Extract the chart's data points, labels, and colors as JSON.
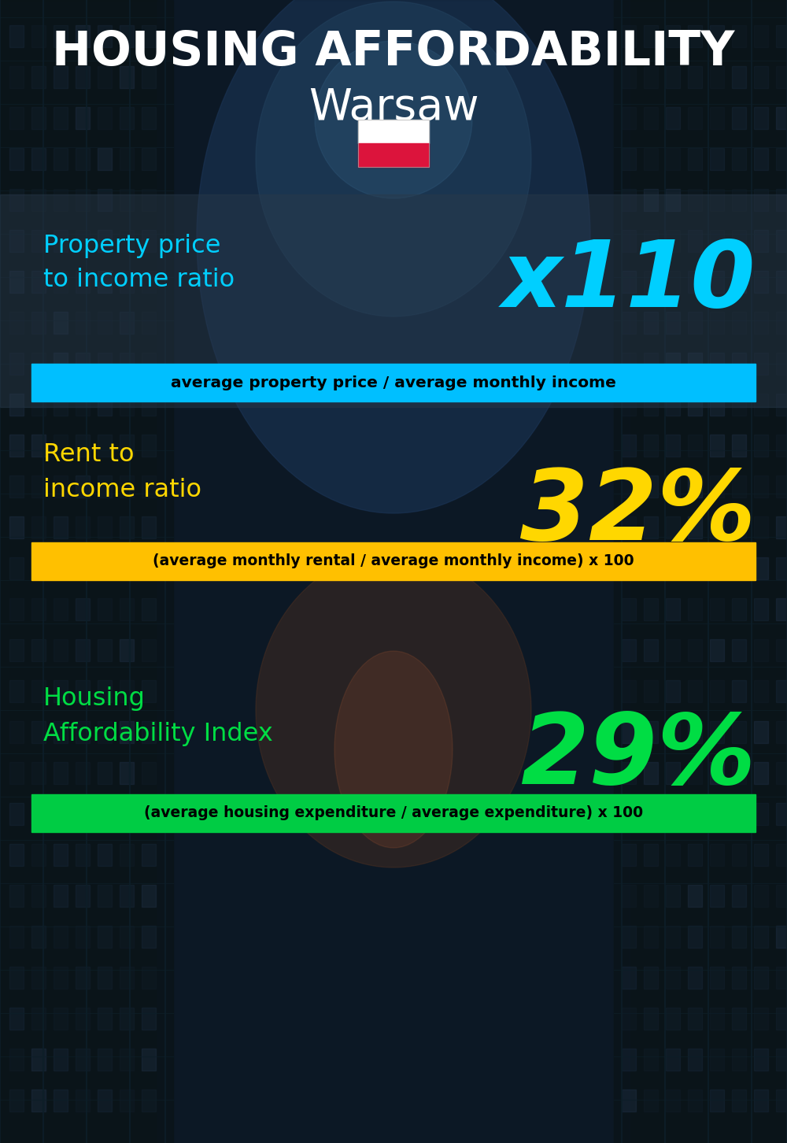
{
  "title_line1": "HOUSING AFFORDABILITY",
  "title_line2": "Warsaw",
  "bg_color": "#0d1520",
  "title1_color": "#ffffff",
  "title2_color": "#ffffff",
  "section1_label": "Property price\nto income ratio",
  "section1_value": "x110",
  "section1_label_color": "#00cfff",
  "section1_value_color": "#00cfff",
  "section1_formula": "average property price / average monthly income",
  "section1_formula_bg": "#00bfff",
  "section1_formula_color": "#000000",
  "section2_label": "Rent to\nincome ratio",
  "section2_value": "32%",
  "section2_label_color": "#ffd700",
  "section2_value_color": "#ffd700",
  "section2_formula": "(average monthly rental / average monthly income) x 100",
  "section2_formula_bg": "#ffc000",
  "section2_formula_color": "#000000",
  "section3_label": "Housing\nAffordability Index",
  "section3_value": "29%",
  "section3_label_color": "#00dd44",
  "section3_value_color": "#00dd44",
  "section3_formula": "(average housing expenditure / average expenditure) x 100",
  "section3_formula_bg": "#00cc44",
  "section3_formula_color": "#000000",
  "flag_white": "#ffffff",
  "flag_red": "#dc143c",
  "panel1_color": "#1e2d3a",
  "panel_alpha": 0.7
}
